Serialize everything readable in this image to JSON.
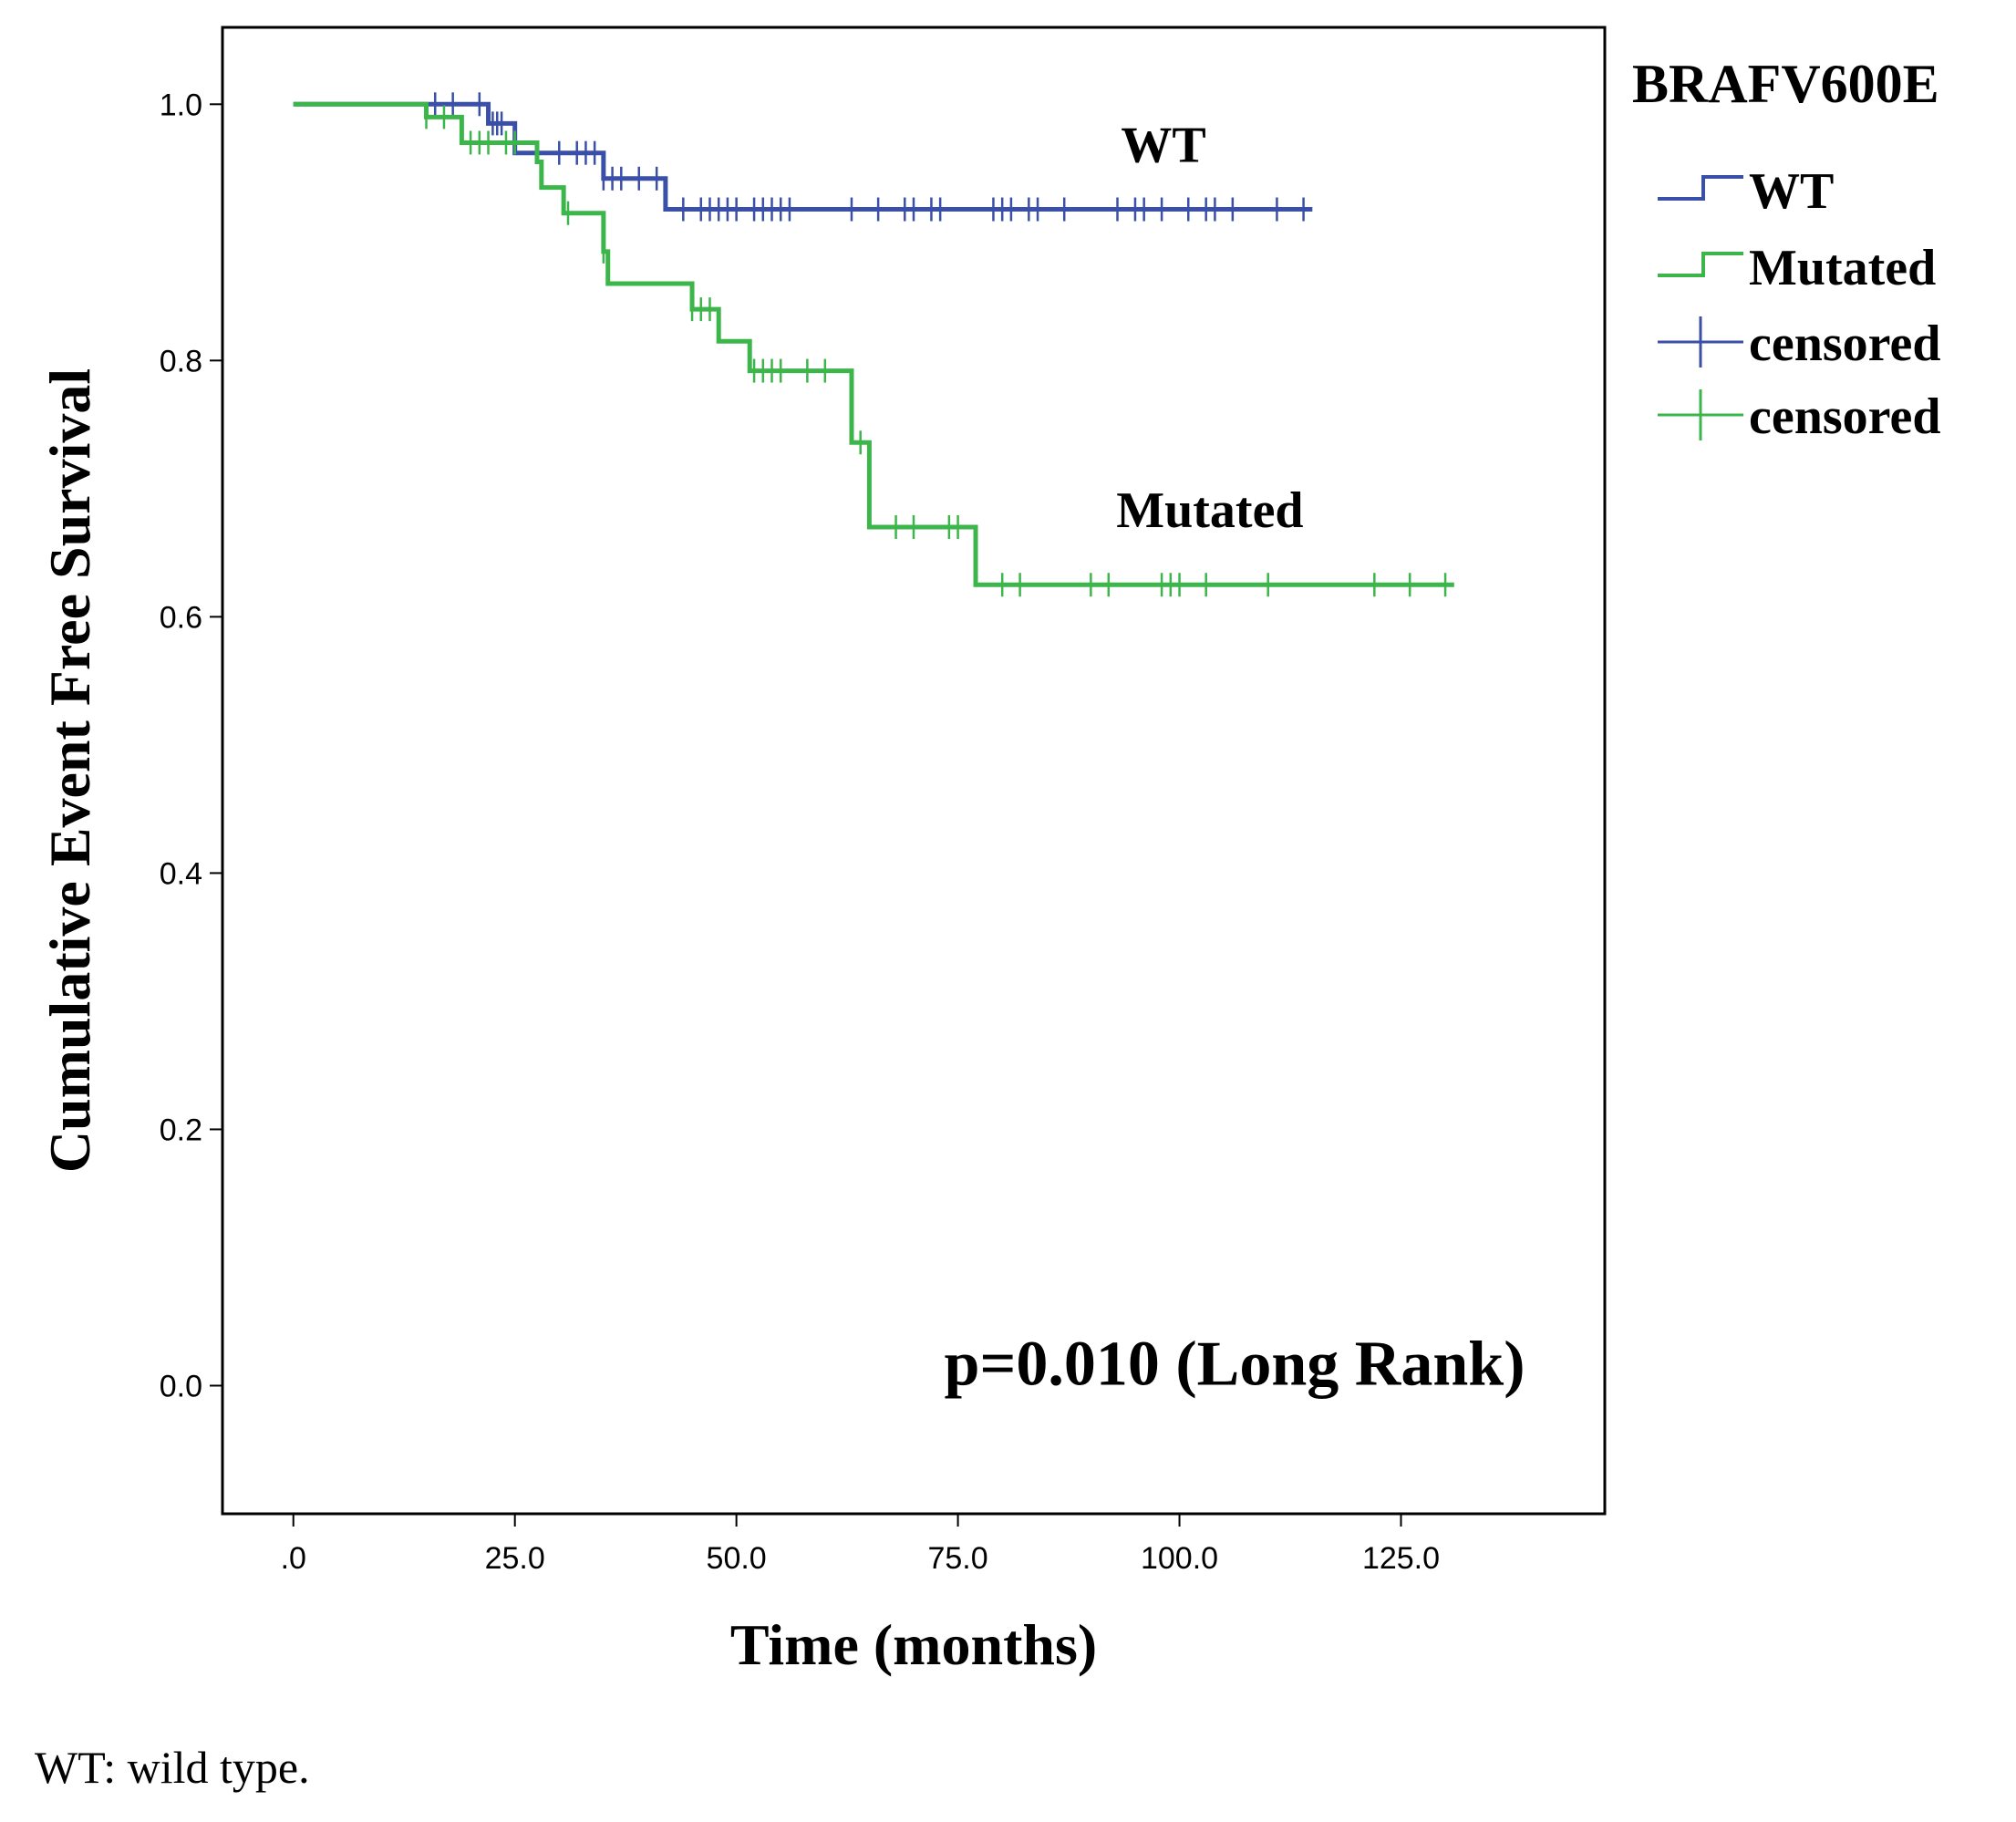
{
  "chart_data": {
    "type": "line",
    "subtype": "kaplan-meier",
    "title": "",
    "xlabel": "Time (months)",
    "ylabel": "Cumulative Event Free Survival",
    "xlim": [
      -8,
      148
    ],
    "ylim": [
      -0.1,
      1.06
    ],
    "x_ticks": [
      0,
      25,
      50,
      75,
      100,
      125
    ],
    "x_tick_labels": [
      ".0",
      "25.0",
      "50.0",
      "75.0",
      "100.0",
      "125.0"
    ],
    "y_ticks": [
      0.0,
      0.2,
      0.4,
      0.6,
      0.8,
      1.0
    ],
    "y_tick_labels": [
      "0.0",
      "0.2",
      "0.4",
      "0.6",
      "0.8",
      "1.0"
    ],
    "legend": {
      "title": "BRAFV600E",
      "position": "right",
      "entries": [
        {
          "label": "WT",
          "kind": "line",
          "series": "WT"
        },
        {
          "label": "Mutated",
          "kind": "line",
          "series": "Mutated"
        },
        {
          "label": "censored",
          "kind": "censor",
          "series": "WT"
        },
        {
          "label": "censored",
          "kind": "censor",
          "series": "Mutated"
        }
      ]
    },
    "annotations": [
      {
        "text": "WT",
        "x": 103,
        "y": 0.955,
        "size": "medium"
      },
      {
        "text": "Mutated",
        "x": 114,
        "y": 0.67,
        "size": "medium"
      },
      {
        "text": "p=0.010 (Long Rank)",
        "x": 139,
        "y": 0.015,
        "size": "large"
      }
    ],
    "series": [
      {
        "name": "WT",
        "color": "#3a4fa8",
        "steps": [
          [
            0,
            1.0
          ],
          [
            22,
            0.985
          ],
          [
            25,
            0.962
          ],
          [
            35,
            0.942
          ],
          [
            42,
            0.918
          ],
          [
            115,
            0.918
          ]
        ],
        "censored": [
          16,
          18,
          21,
          22.5,
          23,
          23.5,
          30,
          32,
          33,
          34,
          35,
          36,
          37,
          39,
          41,
          44,
          46,
          47,
          48,
          49,
          50,
          52,
          53,
          54,
          55,
          56,
          63,
          66,
          69,
          70,
          72,
          73,
          79,
          80,
          81,
          83,
          84,
          87,
          93,
          95,
          96,
          98,
          101,
          103,
          104,
          106,
          111,
          114
        ]
      },
      {
        "name": "Mutated",
        "color": "#3cb54a",
        "steps": [
          [
            0,
            1.0
          ],
          [
            15,
            0.99
          ],
          [
            19,
            0.97
          ],
          [
            27.5,
            0.955
          ],
          [
            28,
            0.935
          ],
          [
            30.5,
            0.915
          ],
          [
            35,
            0.885
          ],
          [
            35.5,
            0.86
          ],
          [
            45,
            0.84
          ],
          [
            48,
            0.815
          ],
          [
            51.5,
            0.792
          ],
          [
            63,
            0.736
          ],
          [
            65,
            0.67
          ],
          [
            77,
            0.625
          ],
          [
            131,
            0.625
          ]
        ],
        "censored": [
          15,
          17,
          20,
          21,
          22,
          24,
          25,
          31,
          35,
          45,
          46,
          47,
          52,
          53,
          54,
          55,
          58,
          60,
          64,
          68,
          70,
          74,
          75,
          80,
          82,
          90,
          92,
          98,
          99,
          100,
          103,
          110,
          122,
          126,
          130
        ]
      }
    ]
  },
  "footnote": "WT: wild type."
}
